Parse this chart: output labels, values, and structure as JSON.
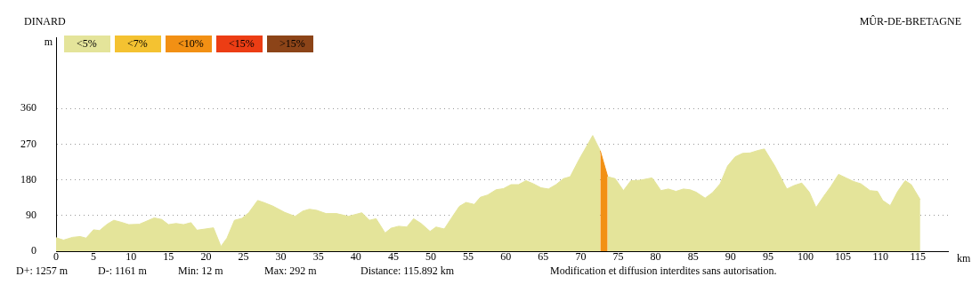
{
  "chart_data": {
    "type": "area",
    "xlabel": "km",
    "ylabel": "m",
    "annotations": [
      "DINARD",
      "MÛR-DE-BRETAGNE",
      "D+: 1257 m",
      "D-: 1161 m",
      "Min: 12 m",
      "Max: 292 m",
      "Distance: 115.892 km",
      "Modification et diffusion interdites sans autorisation."
    ],
    "xlim": [
      0,
      119
    ],
    "xticks": [
      0,
      5,
      10,
      15,
      20,
      25,
      30,
      35,
      40,
      45,
      50,
      55,
      60,
      65,
      70,
      75,
      80,
      85,
      90,
      95,
      100,
      105,
      110,
      115
    ],
    "ylim": [
      0,
      540
    ],
    "yticks": [
      0,
      90,
      180,
      270,
      360
    ],
    "grid": "y",
    "legend": "top left",
    "series": [
      {
        "name": "<5%",
        "color": "#e4e49a",
        "x": [
          0,
          1.0,
          2.2,
          3.2,
          4.0,
          5.0,
          5.8,
          6.8,
          7.7,
          8.7,
          9.7,
          11.1,
          12.1,
          13.1,
          14.1,
          15.0,
          16.0,
          17.0,
          18.0,
          18.8,
          21.0,
          22.0,
          22.8,
          23.8,
          24.8,
          25.7,
          26.9,
          27.7,
          28.9,
          30.5,
          31.9,
          32.9,
          33.8,
          34.8,
          36.0,
          37.4,
          39.0,
          40.8,
          41.8,
          42.7,
          43.9,
          44.7,
          45.7,
          46.8,
          47.7,
          48.7,
          49.9,
          50.7,
          51.8,
          52.7,
          53.8,
          54.7,
          55.8,
          56.6,
          57.6,
          58.7,
          59.7,
          60.7,
          61.7,
          62.7,
          63.7,
          64.7,
          65.7,
          66.7,
          67.7,
          68.6,
          69.8,
          70.8,
          71.6,
          72.6,
          73.1,
          73.6,
          74.6,
          75.7,
          76.7,
          77.9,
          79.5,
          79.7,
          80.7,
          81.7,
          82.7,
          83.7,
          84.6,
          85.4,
          86.6,
          87.6,
          88.6,
          89.6,
          90.6,
          91.6,
          92.6,
          93.6,
          94.5,
          95.9,
          97.5,
          98.5,
          99.5,
          100.5,
          101.4,
          102.4,
          103.4,
          104.4,
          105.4,
          106.4,
          107.4,
          108.6,
          109.6,
          110.3,
          111.3,
          112.3,
          113.3,
          114.1,
          115.3
        ],
        "values": [
          34,
          28,
          35,
          37,
          33,
          54,
          52,
          68,
          78,
          73,
          67,
          68,
          76,
          84,
          80,
          67,
          70,
          67,
          72,
          53,
          59,
          12,
          33,
          78,
          83,
          97,
          128,
          123,
          114,
          98,
          88,
          101,
          106,
          103,
          95,
          95,
          88,
          97,
          78,
          82,
          46,
          58,
          63,
          61,
          82,
          70,
          50,
          61,
          56,
          82,
          113,
          123,
          118,
          136,
          142,
          155,
          158,
          168,
          168,
          178,
          170,
          160,
          157,
          168,
          183,
          188,
          232,
          265,
          292,
          254,
          null,
          188,
          183,
          153,
          178,
          179,
          185,
          181,
          153,
          157,
          151,
          157,
          155,
          149,
          134,
          148,
          170,
          215,
          238,
          247,
          248,
          254,
          258,
          215,
          157,
          166,
          172,
          149,
          110,
          138,
          164,
          194,
          185,
          176,
          170,
          153,
          151,
          128,
          115,
          151,
          178,
          168,
          130
        ]
      },
      {
        "name": "<7%",
        "color": "#f4c231"
      },
      {
        "name": "<10%",
        "color": "#f29014",
        "x": [
          72.6,
          73.6
        ],
        "values": [
          254,
          188
        ]
      },
      {
        "name": "<15%",
        "color": "#ec3d14"
      },
      {
        "name": ">15%",
        "color": "#8c4418"
      }
    ]
  }
}
